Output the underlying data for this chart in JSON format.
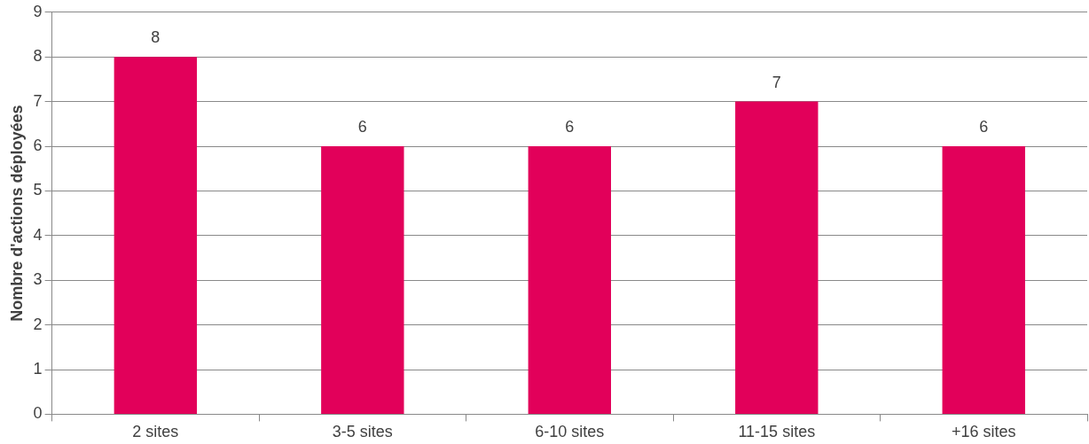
{
  "chart_data": {
    "type": "bar",
    "ylabel": "Nombre d'actions déployées",
    "categories": [
      "2 sites",
      "3-5 sites",
      "6-10 sites",
      "11-15 sites",
      "+16 sites"
    ],
    "values": [
      8,
      6,
      6,
      7,
      6
    ],
    "color": "#e2005a",
    "ylim": [
      0,
      9
    ],
    "yticks": [
      0,
      1,
      2,
      3,
      4,
      5,
      6,
      7,
      8,
      9
    ],
    "grid": "y",
    "data_labels": true
  }
}
